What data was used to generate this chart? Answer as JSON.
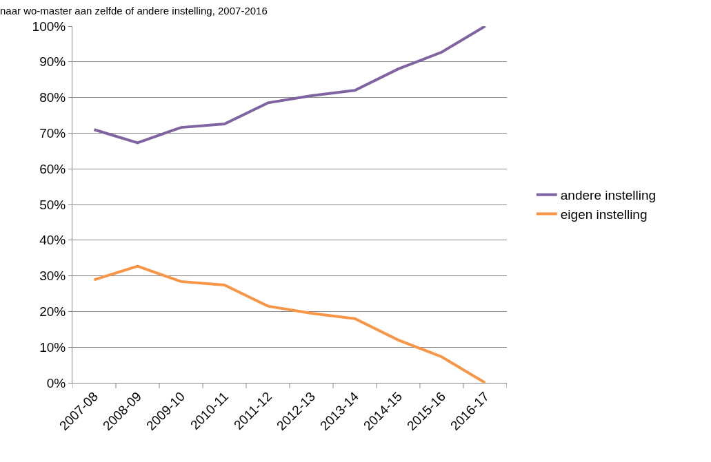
{
  "chart_data": {
    "type": "line",
    "title": "naar wo-master aan zelfde of andere instelling, 2007-2016",
    "categories": [
      "2007-08",
      "2008-09",
      "2009-10",
      "2010-11",
      "2011-12",
      "2012-13",
      "2013-14",
      "2014-15",
      "2015-16",
      "2016-17"
    ],
    "series": [
      {
        "name": "andere instelling",
        "color": "#8064a2",
        "values": [
          71.0,
          67.3,
          71.6,
          72.6,
          78.5,
          80.5,
          82.0,
          88.0,
          92.7,
          100
        ]
      },
      {
        "name": "eigen instelling",
        "color": "#f79646",
        "values": [
          28.9,
          32.7,
          28.4,
          27.4,
          21.5,
          19.5,
          18.0,
          12.0,
          7.3,
          0
        ]
      }
    ],
    "ylim": [
      0,
      100
    ],
    "yticks": [
      {
        "value": 0,
        "label": "0%"
      },
      {
        "value": 10,
        "label": "10%"
      },
      {
        "value": 20,
        "label": "20%"
      },
      {
        "value": 30,
        "label": "30%"
      },
      {
        "value": 40,
        "label": "40%"
      },
      {
        "value": 50,
        "label": "50%"
      },
      {
        "value": 60,
        "label": "60%"
      },
      {
        "value": 70,
        "label": "70%"
      },
      {
        "value": 80,
        "label": "80%"
      },
      {
        "value": 90,
        "label": "90%"
      },
      {
        "value": 100,
        "label": "100%"
      }
    ],
    "grid": "y",
    "legend": "right",
    "marker": "none",
    "line_style": "solid"
  }
}
